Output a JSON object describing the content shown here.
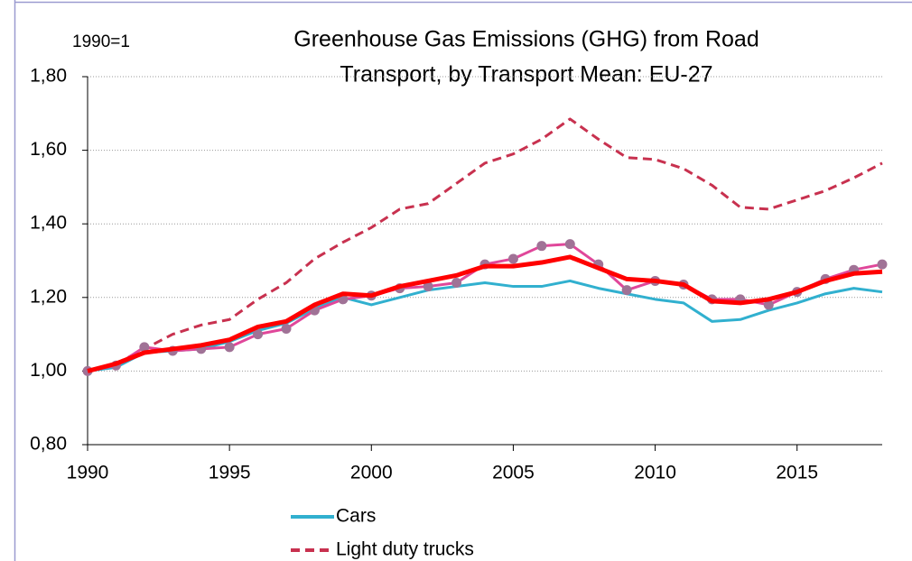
{
  "chart_data": {
    "type": "line",
    "title": [
      "Greenhouse Gas Emissions (GHG) from Road",
      "Transport, by Transport Mean: EU-27"
    ],
    "annotation": "1990=1",
    "x": [
      1990,
      1991,
      1992,
      1993,
      1994,
      1995,
      1996,
      1997,
      1998,
      1999,
      2000,
      2001,
      2002,
      2003,
      2004,
      2005,
      2006,
      2007,
      2008,
      2009,
      2010,
      2011,
      2012,
      2013,
      2014,
      2015,
      2016,
      2017,
      2018
    ],
    "xlim": [
      1990,
      2018
    ],
    "xticks": [
      1990,
      1995,
      2000,
      2005,
      2010,
      2015
    ],
    "ylim": [
      0.8,
      1.8
    ],
    "yticks": [
      {
        "value": 0.8,
        "label": "0,80"
      },
      {
        "value": 1.0,
        "label": "1,00"
      },
      {
        "value": 1.2,
        "label": "1,20"
      },
      {
        "value": 1.4,
        "label": "1,40"
      },
      {
        "value": 1.6,
        "label": "1,60"
      },
      {
        "value": 1.8,
        "label": "1,80"
      }
    ],
    "grid": true,
    "series": [
      {
        "name": "Cars",
        "color": "#31b0cf",
        "dash": false,
        "marker": false,
        "width": 3,
        "values": [
          1.0,
          1.01,
          1.05,
          1.055,
          1.06,
          1.08,
          1.11,
          1.13,
          1.17,
          1.2,
          1.18,
          1.2,
          1.22,
          1.23,
          1.24,
          1.23,
          1.23,
          1.245,
          1.225,
          1.21,
          1.195,
          1.185,
          1.135,
          1.14,
          1.165,
          1.185,
          1.21,
          1.225,
          1.215
        ]
      },
      {
        "name": "Light duty trucks",
        "color": "#c8314f",
        "dash": true,
        "marker": false,
        "width": 3,
        "values": [
          1.0,
          1.02,
          1.06,
          1.1,
          1.125,
          1.14,
          1.195,
          1.24,
          1.305,
          1.35,
          1.39,
          1.44,
          1.455,
          1.51,
          1.565,
          1.59,
          1.63,
          1.685,
          1.63,
          1.58,
          1.575,
          1.55,
          1.505,
          1.445,
          1.44,
          1.465,
          1.49,
          1.525,
          1.565
        ]
      },
      {
        "color": "#e0479a",
        "dash": false,
        "marker": true,
        "marker_color": "#a07296",
        "width": 3,
        "values": [
          1.0,
          1.015,
          1.065,
          1.055,
          1.06,
          1.065,
          1.1,
          1.115,
          1.165,
          1.195,
          1.205,
          1.225,
          1.23,
          1.24,
          1.29,
          1.305,
          1.34,
          1.345,
          1.29,
          1.22,
          1.245,
          1.235,
          1.195,
          1.195,
          1.18,
          1.215,
          1.25,
          1.275,
          1.29
        ]
      },
      {
        "color": "#ff0000",
        "dash": false,
        "marker": false,
        "width": 5,
        "values": [
          1.0,
          1.02,
          1.05,
          1.06,
          1.07,
          1.085,
          1.12,
          1.135,
          1.18,
          1.21,
          1.205,
          1.23,
          1.245,
          1.26,
          1.285,
          1.285,
          1.295,
          1.31,
          1.28,
          1.25,
          1.245,
          1.235,
          1.19,
          1.185,
          1.195,
          1.215,
          1.245,
          1.265,
          1.27
        ]
      }
    ]
  }
}
